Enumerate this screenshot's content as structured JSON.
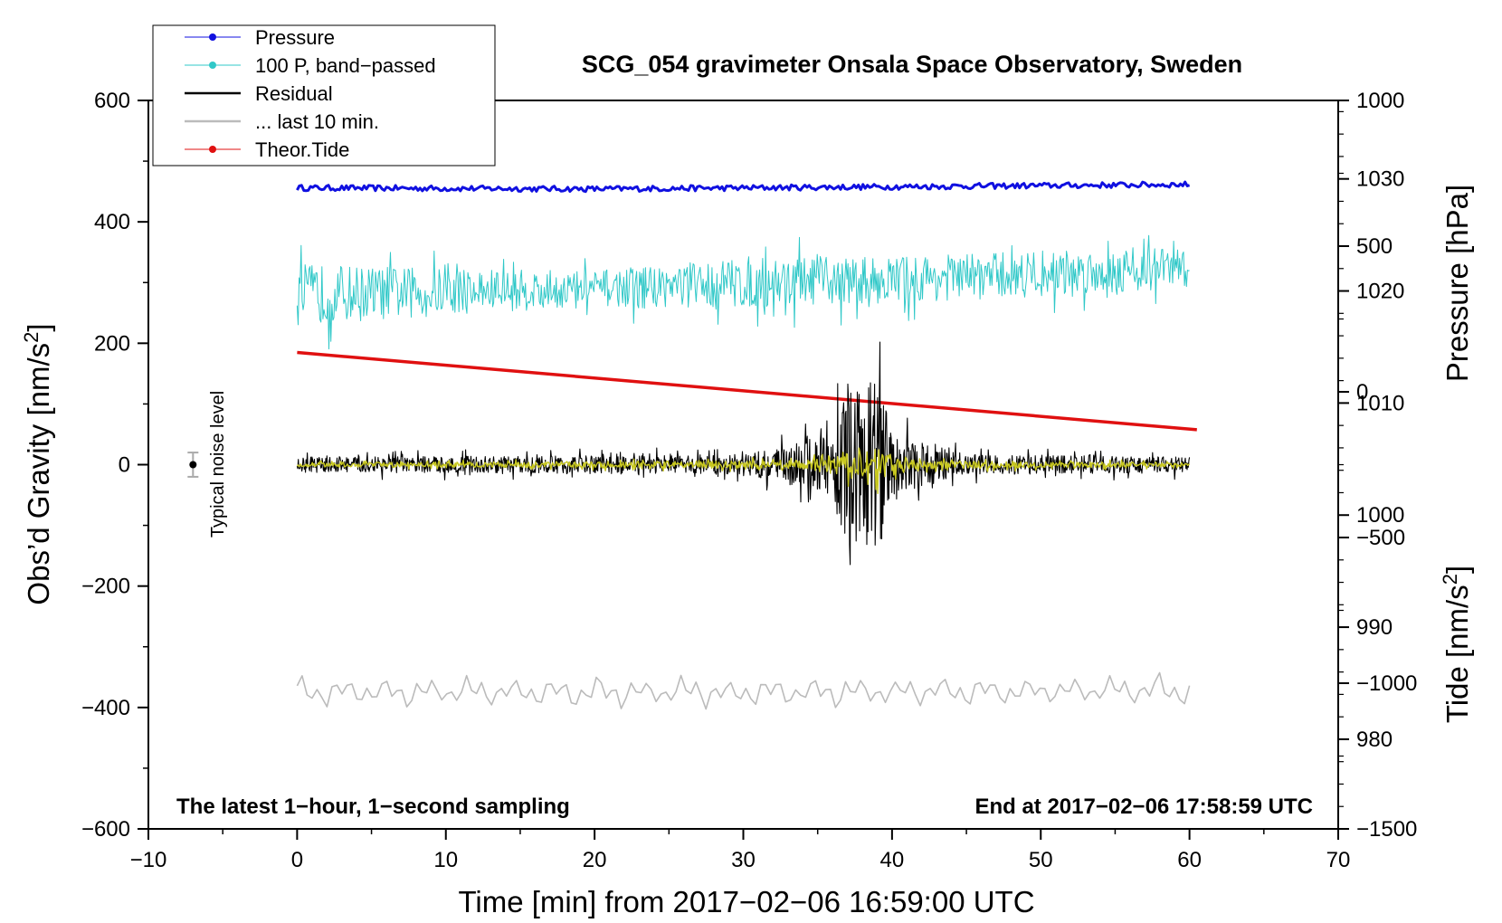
{
  "chart_data": {
    "type": "line",
    "title": "SCG_054 gravimeter Onsala Space Observatory, Sweden",
    "xlabel": "Time [min] from 2017−02−06 16:59:00 UTC",
    "ylabel_left": "Obs’d Gravity [nm/s",
    "ylabel_left_sup": "2",
    "ylabel_left_end": "]",
    "ylabel_right_top": "Pressure [hPa]",
    "ylabel_right_bottom": "Tide [nm/s",
    "ylabel_right_bottom_sup": "2",
    "ylabel_right_bottom_end": "]",
    "xlim": [
      -10,
      70
    ],
    "ylim_left": [
      -600,
      600
    ],
    "ylim_pressure": [
      972,
      1037
    ],
    "ylim_tide": [
      -1500,
      1000
    ],
    "x_ticks": [
      "−10",
      "0",
      "10",
      "20",
      "30",
      "40",
      "50",
      "60",
      "70"
    ],
    "x_tick_values": [
      -10,
      0,
      10,
      20,
      30,
      40,
      50,
      60,
      70
    ],
    "left_ticks": [
      "600",
      "400",
      "200",
      "0",
      "−200",
      "−400",
      "−600"
    ],
    "left_tick_values": [
      600,
      400,
      200,
      0,
      -200,
      -400,
      -600
    ],
    "pressure_ticks": [
      "1030",
      "1020",
      "1010",
      "1000",
      "990",
      "980"
    ],
    "pressure_tick_values": [
      1030,
      1020,
      1010,
      1000,
      990,
      980
    ],
    "tide_ticks": [
      "1000",
      "500",
      "0",
      "−500",
      "−1000",
      "−1500"
    ],
    "tide_tick_values": [
      1000,
      500,
      0,
      -500,
      -1000,
      -1500
    ],
    "note_left": "The latest 1−hour, 1−second sampling",
    "note_right": "End at 2017−02−06 17:58:59 UTC",
    "noise_label": "Typical noise level",
    "noise_marker": {
      "x": -7,
      "y": 0,
      "err": 20
    },
    "legend": [
      {
        "label": "Pressure",
        "color": "#1010e0",
        "marker": true
      },
      {
        "label": "100 P, band−passed",
        "color": "#30c8c8",
        "marker": true
      },
      {
        "label": "Residual",
        "color": "#000000",
        "marker": false
      },
      {
        "label": "... last 10 min.",
        "color": "#bbbbbb",
        "marker": false
      },
      {
        "label": "Theor.Tide",
        "color": "#e01010",
        "marker": true
      }
    ],
    "series": [
      {
        "name": "Pressure",
        "axis": "pressure",
        "color": "#1010e0",
        "x": [
          0,
          20,
          40,
          60
        ],
        "y": [
          1029.2,
          1029.1,
          1029.3,
          1029.5
        ]
      },
      {
        "name": "100 P, band−passed",
        "axis": "left",
        "color": "#30c8c8",
        "x": [
          0,
          10,
          20,
          30,
          40,
          50,
          60
        ],
        "y": [
          280,
          285,
          290,
          300,
          305,
          315,
          325
        ],
        "amplitude": [
          60,
          45,
          35,
          50,
          45,
          45,
          40
        ]
      },
      {
        "name": "Residual",
        "axis": "left",
        "color": "#000000",
        "x": [
          0,
          30,
          36,
          37,
          38,
          39,
          40,
          45,
          60
        ],
        "y": [
          0,
          0,
          0,
          0,
          0,
          0,
          0,
          0,
          0
        ],
        "amplitude": [
          15,
          18,
          60,
          160,
          140,
          190,
          60,
          20,
          15
        ]
      },
      {
        "name": "Residual filtered",
        "axis": "left",
        "color": "#c8c820",
        "x": [
          0,
          34,
          37,
          39,
          42,
          60
        ],
        "y": [
          0,
          0,
          0,
          0,
          0,
          0
        ],
        "amplitude": [
          4,
          8,
          25,
          30,
          8,
          4
        ]
      },
      {
        "name": "Theor.Tide",
        "axis": "tide",
        "color": "#e01010",
        "x": [
          0,
          60.5
        ],
        "y": [
          135,
          -130
        ]
      },
      {
        "name": "... last 10 min.",
        "axis": "left",
        "color": "#bbbbbb",
        "x": [
          0,
          30,
          60
        ],
        "y": [
          -375,
          -375,
          -372
        ],
        "amplitude": [
          22,
          22,
          22
        ]
      }
    ]
  }
}
